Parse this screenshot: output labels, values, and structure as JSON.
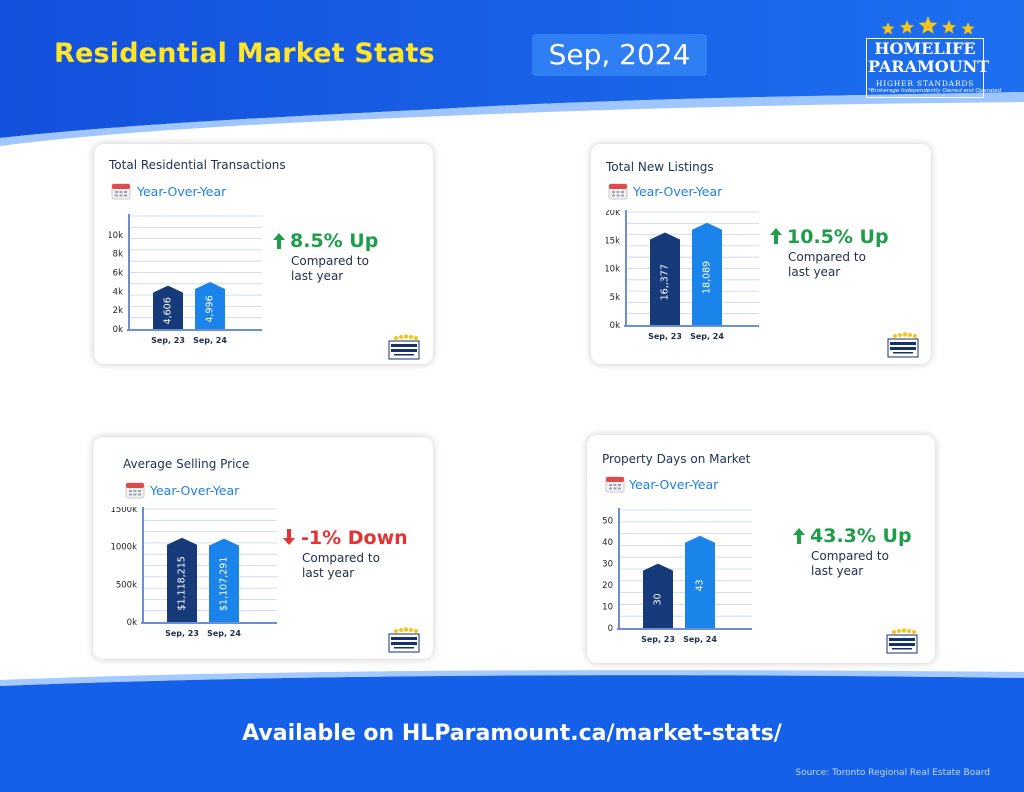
{
  "header": {
    "title": "Residential Market Stats",
    "date": "Sep, 2024"
  },
  "brand": {
    "line1": "HOMELIFE",
    "line2": "PARAMOUNT",
    "tagline": "HIGHER STANDARDS",
    "note": "*Brokerage Independently Owned and Operated",
    "colors": {
      "star": "#f5c518",
      "band_blue": "#1560e8",
      "wave_light": "#7fb4ff"
    }
  },
  "footer": {
    "url_text": "Available on HLParamount.ca/market-stats/",
    "source": "Source: Toronto Regional Real Estate Board"
  },
  "cards": [
    {
      "title": "Total Residential Transactions",
      "subtitle": "Year-Over-Year",
      "change": "8.5% Up",
      "direction": "up",
      "compare_line1": "Compared to",
      "compare_line2": "last year"
    },
    {
      "title": "Total New Listings",
      "subtitle": "Year-Over-Year",
      "change": "10.5% Up",
      "direction": "up",
      "compare_line1": "Compared to",
      "compare_line2": "last year"
    },
    {
      "title": "Average Selling Price",
      "subtitle": "Year-Over-Year",
      "change": "-1% Down",
      "direction": "down",
      "compare_line1": "Compared to",
      "compare_line2": "last year"
    },
    {
      "title": "Property Days on Market",
      "subtitle": "Year-Over-Year",
      "change": "43.3% Up",
      "direction": "up",
      "compare_line1": "Compared to",
      "compare_line2": "last year"
    }
  ],
  "chart_data": [
    {
      "type": "bar",
      "title": "Total Residential Transactions",
      "categories": [
        "Sep, 23",
        "Sep, 24"
      ],
      "values": [
        4606,
        4996
      ],
      "value_labels": [
        "4,606",
        "4,996"
      ],
      "ylim": [
        0,
        12000
      ],
      "yticks": [
        0,
        2000,
        4000,
        6000,
        8000,
        10000
      ],
      "ytick_labels": [
        "0k",
        "2k",
        "4k",
        "6k",
        "8k",
        "10k"
      ],
      "colors": [
        "#173a7a",
        "#1a84ea"
      ],
      "grid": true
    },
    {
      "type": "bar",
      "title": "Total New Listings",
      "categories": [
        "Sep, 23",
        "Sep, 24"
      ],
      "values": [
        16377,
        18089
      ],
      "value_labels": [
        "16,,377",
        "18,089"
      ],
      "ylim": [
        0,
        20000
      ],
      "yticks": [
        0,
        5000,
        10000,
        15000,
        20000
      ],
      "ytick_labels": [
        "0k",
        "5k",
        "10k",
        "15k",
        "20k"
      ],
      "colors": [
        "#173a7a",
        "#1a84ea"
      ],
      "grid": true
    },
    {
      "type": "bar",
      "title": "Average Selling Price",
      "categories": [
        "Sep, 23",
        "Sep, 24"
      ],
      "values": [
        1118215,
        1107291
      ],
      "value_labels": [
        "$1,118,215",
        "$1,107,291"
      ],
      "ylim": [
        0,
        1500000
      ],
      "yticks": [
        0,
        500000,
        1000000,
        1500000
      ],
      "ytick_labels": [
        "0k",
        "500k",
        "1000k",
        "1500k"
      ],
      "colors": [
        "#173a7a",
        "#1a84ea"
      ],
      "grid": true
    },
    {
      "type": "bar",
      "title": "Property Days on Market",
      "categories": [
        "Sep, 23",
        "Sep, 24"
      ],
      "values": [
        30,
        43
      ],
      "value_labels": [
        "30",
        "43"
      ],
      "ylim": [
        0,
        55
      ],
      "yticks": [
        0,
        10,
        20,
        30,
        40,
        50
      ],
      "ytick_labels": [
        "0",
        "10",
        "20",
        "30",
        "40",
        "50"
      ],
      "colors": [
        "#173a7a",
        "#1a84ea"
      ],
      "grid": true
    }
  ]
}
